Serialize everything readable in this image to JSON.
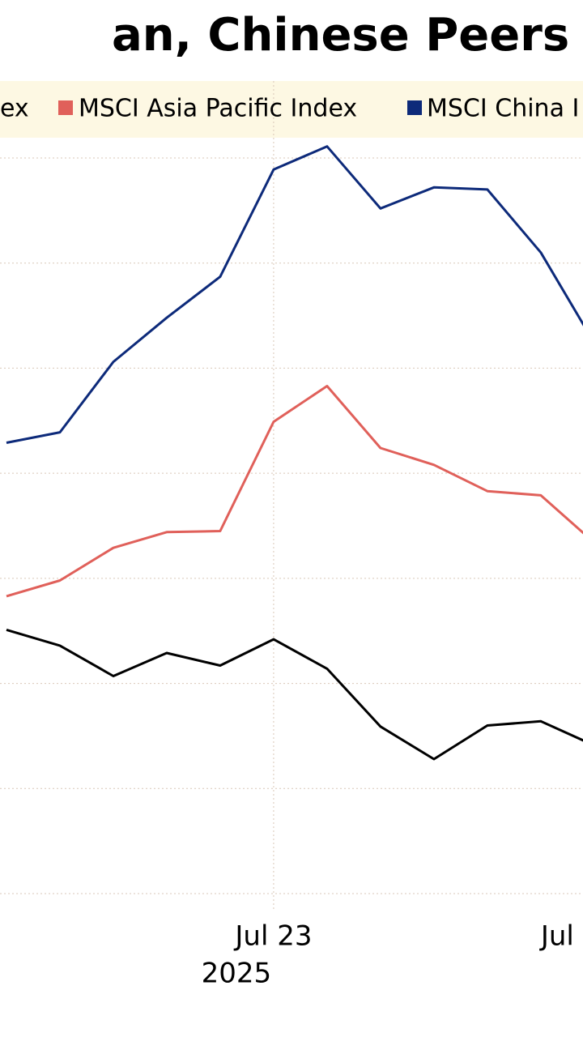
{
  "chart_data": {
    "type": "line",
    "title": "an, Chinese Peers T",
    "x": [
      0,
      1,
      2,
      3,
      4,
      5,
      6,
      7,
      8,
      9,
      10,
      11
    ],
    "series": [
      {
        "name": "ex",
        "color": "#000000",
        "values": [
          2.51,
          2.36,
          2.07,
          2.29,
          2.17,
          2.42,
          2.14,
          1.59,
          1.28,
          1.6,
          1.64,
          1.41
        ]
      },
      {
        "name": "MSCI Asia Pacific Index",
        "color": "#e0605a",
        "values": [
          2.83,
          2.98,
          3.29,
          3.44,
          3.45,
          4.49,
          4.83,
          4.24,
          4.08,
          3.83,
          3.79,
          3.34
        ]
      },
      {
        "name": "MSCI China I",
        "color": "#0d2a7a",
        "values": [
          4.29,
          4.39,
          5.06,
          5.48,
          5.87,
          6.89,
          7.11,
          6.52,
          6.72,
          6.7,
          6.1,
          5.24
        ]
      }
    ],
    "xlim": [
      -0.121,
      10.79
    ],
    "xticks": [
      {
        "value": 5,
        "label": "Jul 23"
      },
      {
        "value": 10,
        "label": "Jul"
      }
    ],
    "year_label": "2025",
    "ylim": [
      0,
      7
    ],
    "yticks": [
      0,
      1,
      2,
      3,
      4,
      5,
      6,
      7
    ],
    "grid": true
  }
}
